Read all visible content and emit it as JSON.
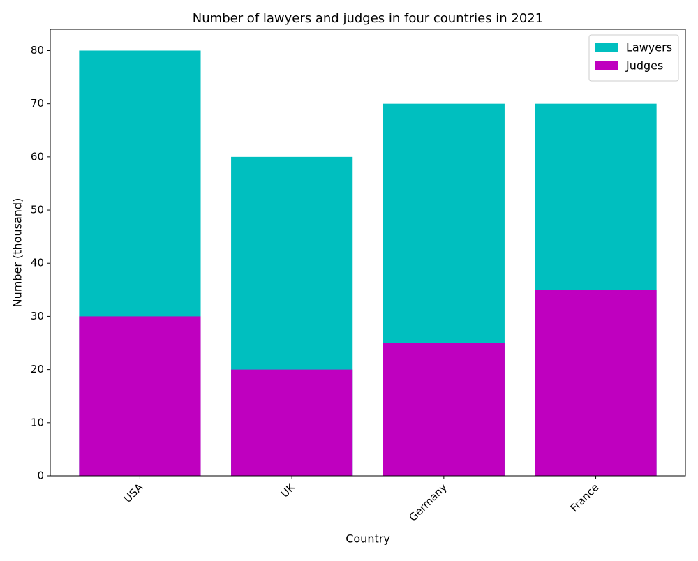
{
  "chart_data": {
    "type": "bar",
    "overlap": true,
    "title": "Number of lawyers and judges in four countries in 2021",
    "xlabel": "Country",
    "ylabel": "Number (thousand)",
    "categories": [
      "USA",
      "UK",
      "Germany",
      "France"
    ],
    "series": [
      {
        "name": "Lawyers",
        "color": "#00bfbf",
        "values": [
          80,
          60,
          70,
          70
        ]
      },
      {
        "name": "Judges",
        "color": "#bf00bf",
        "values": [
          30,
          20,
          25,
          35
        ]
      }
    ],
    "ylim": [
      0,
      84
    ],
    "yticks": [
      0,
      10,
      20,
      30,
      40,
      50,
      60,
      70,
      80
    ],
    "legend": "upper right"
  }
}
